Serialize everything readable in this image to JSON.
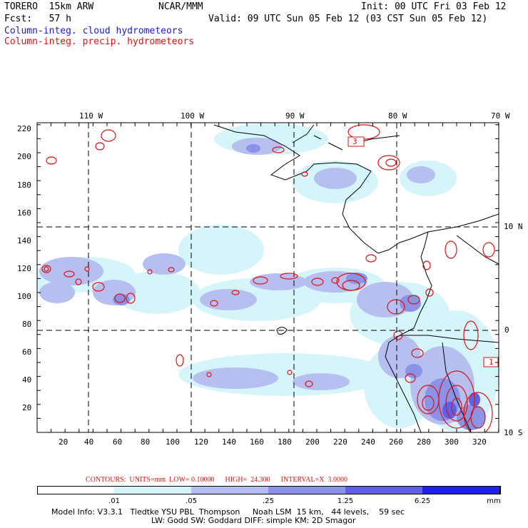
{
  "header": {
    "model": "TORERO  15km ARW",
    "center": "NCAR/MMM",
    "init": "Init: 00 UTC Fri 03 Feb 12",
    "fcst_label": "Fcst:   57 h",
    "valid": "Valid: 09 UTC Sun 05 Feb 12 (03 CST Sun 05 Feb 12)",
    "field1": "Column-integ. cloud hydrometeors",
    "field2": "Column-integ. precip. hydrometeors"
  },
  "map": {
    "lon_labels": [
      "110 W",
      "100 W",
      "90 W",
      "80 W",
      "70 W"
    ],
    "lat_labels": [
      "10 N",
      "0",
      "10 S"
    ],
    "y_ticks": [
      "220",
      "200",
      "180",
      "160",
      "140",
      "120",
      "100",
      "80",
      "60",
      "40",
      "20"
    ],
    "x_ticks": [
      "20",
      "40",
      "60",
      "80",
      "100",
      "120",
      "140",
      "160",
      "180",
      "200",
      "220",
      "240",
      "260",
      "280",
      "300",
      "320"
    ],
    "box_labels": [
      "3",
      "1"
    ]
  },
  "contours": {
    "text": "CONTOURS:  UNITS=mm  LOW= 0.10000      HIGH=  24.300      INTERVAL=X  3.0000"
  },
  "colorbar": {
    "labels": [
      ".01",
      ".05",
      ".25",
      "1.25",
      "6.25"
    ],
    "unit": "mm",
    "colors": [
      "#ffffff",
      "#d6f5fb",
      "#b6bff0",
      "#8a93e6",
      "#6060e6",
      "#2020ee"
    ]
  },
  "footer": {
    "line1": "Model Info: V3.3.1   Tiedtke YSU PBL  Thompson     Noah LSM  15 km,   44 levels,    59 sec",
    "line2": "LW: Godd SW: Goddard DIFF: simple KM: 2D Smagor"
  }
}
